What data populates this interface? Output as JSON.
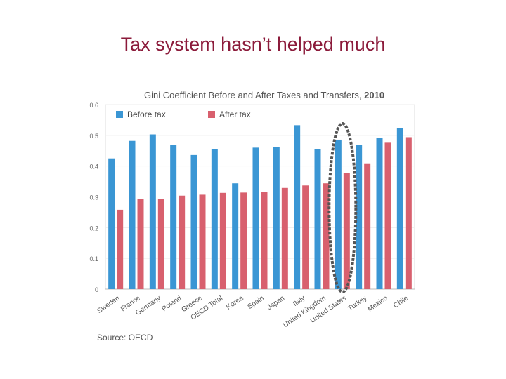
{
  "slide": {
    "title": "Tax system hasn’t helped much",
    "source": "Source: OECD"
  },
  "colors": {
    "title": "#8b1a3a",
    "before": "#3a96d4",
    "after": "#d8606e",
    "highlight": "#555555"
  },
  "chart_data": {
    "type": "bar",
    "title": "Gini Coefficient Before and After Taxes and Transfers, 2010",
    "title_main": "Gini Coefficient Before and After Taxes and Transfers,",
    "title_year": "2010",
    "xlabel": "",
    "ylabel": "",
    "ylim": [
      0,
      0.6
    ],
    "yticks": [
      "0",
      "0.1",
      "0.2",
      "0.3",
      "0.4",
      "0.5",
      "0.6"
    ],
    "legend_position": "top-left",
    "categories": [
      "Sweden",
      "France",
      "Germany",
      "Poland",
      "Greece",
      "OECD Total",
      "Korea",
      "Spain",
      "Japan",
      "Italy",
      "United Kingdom",
      "United States",
      "Turkey",
      "Mexico",
      "Chile"
    ],
    "series": [
      {
        "name": "Before tax",
        "values": [
          0.425,
          0.482,
          0.503,
          0.469,
          0.436,
          0.456,
          0.344,
          0.46,
          0.461,
          0.533,
          0.455,
          0.486,
          0.468,
          0.492,
          0.524
        ]
      },
      {
        "name": "After tax",
        "values": [
          0.258,
          0.293,
          0.294,
          0.304,
          0.307,
          0.313,
          0.314,
          0.317,
          0.329,
          0.337,
          0.344,
          0.378,
          0.409,
          0.476,
          0.494
        ]
      }
    ],
    "highlighted_category": "United States"
  }
}
